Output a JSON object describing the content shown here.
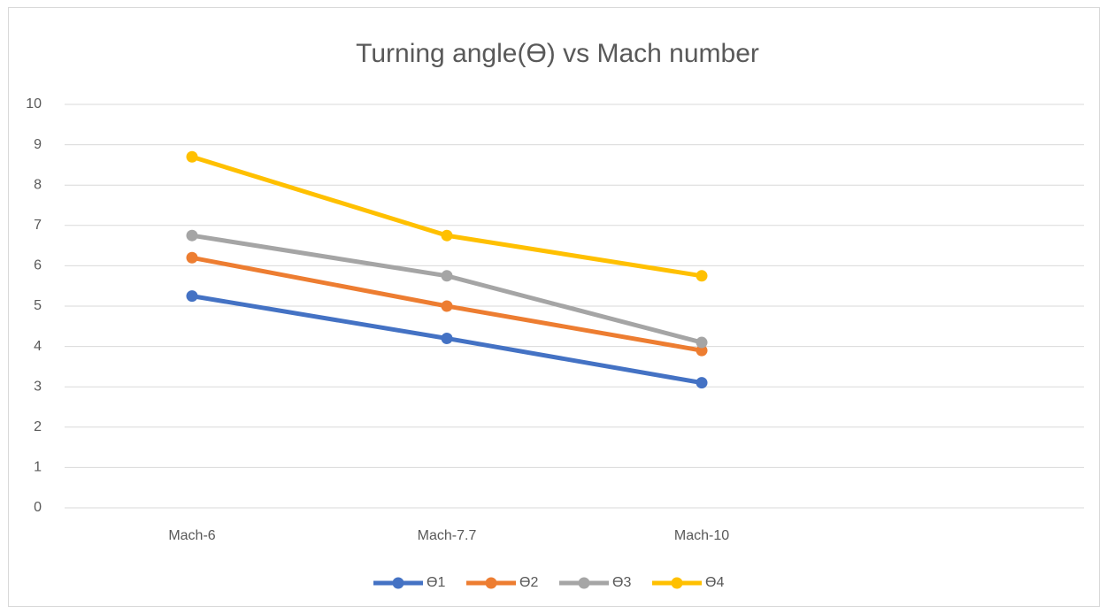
{
  "chart_data": {
    "type": "line",
    "title": "Turning angle(ϴ) vs Mach number",
    "categories": [
      "Mach-6",
      "Mach-7.7",
      "Mach-10",
      null
    ],
    "series": [
      {
        "name": "ϴ1",
        "color": "#4472c4",
        "values": [
          5.25,
          4.2,
          3.1,
          null
        ]
      },
      {
        "name": "ϴ2",
        "color": "#ed7d31",
        "values": [
          6.2,
          5.0,
          3.9,
          null
        ]
      },
      {
        "name": "ϴ3",
        "color": "#a5a5a5",
        "values": [
          6.75,
          5.75,
          4.1,
          null
        ]
      },
      {
        "name": "ϴ4",
        "color": "#ffc000",
        "values": [
          8.7,
          6.75,
          5.75,
          null
        ]
      }
    ],
    "ylim": [
      0,
      10
    ],
    "yticks": [
      0,
      1,
      2,
      3,
      4,
      5,
      6,
      7,
      8,
      9,
      10
    ],
    "grid": true,
    "legend": "bottom"
  }
}
